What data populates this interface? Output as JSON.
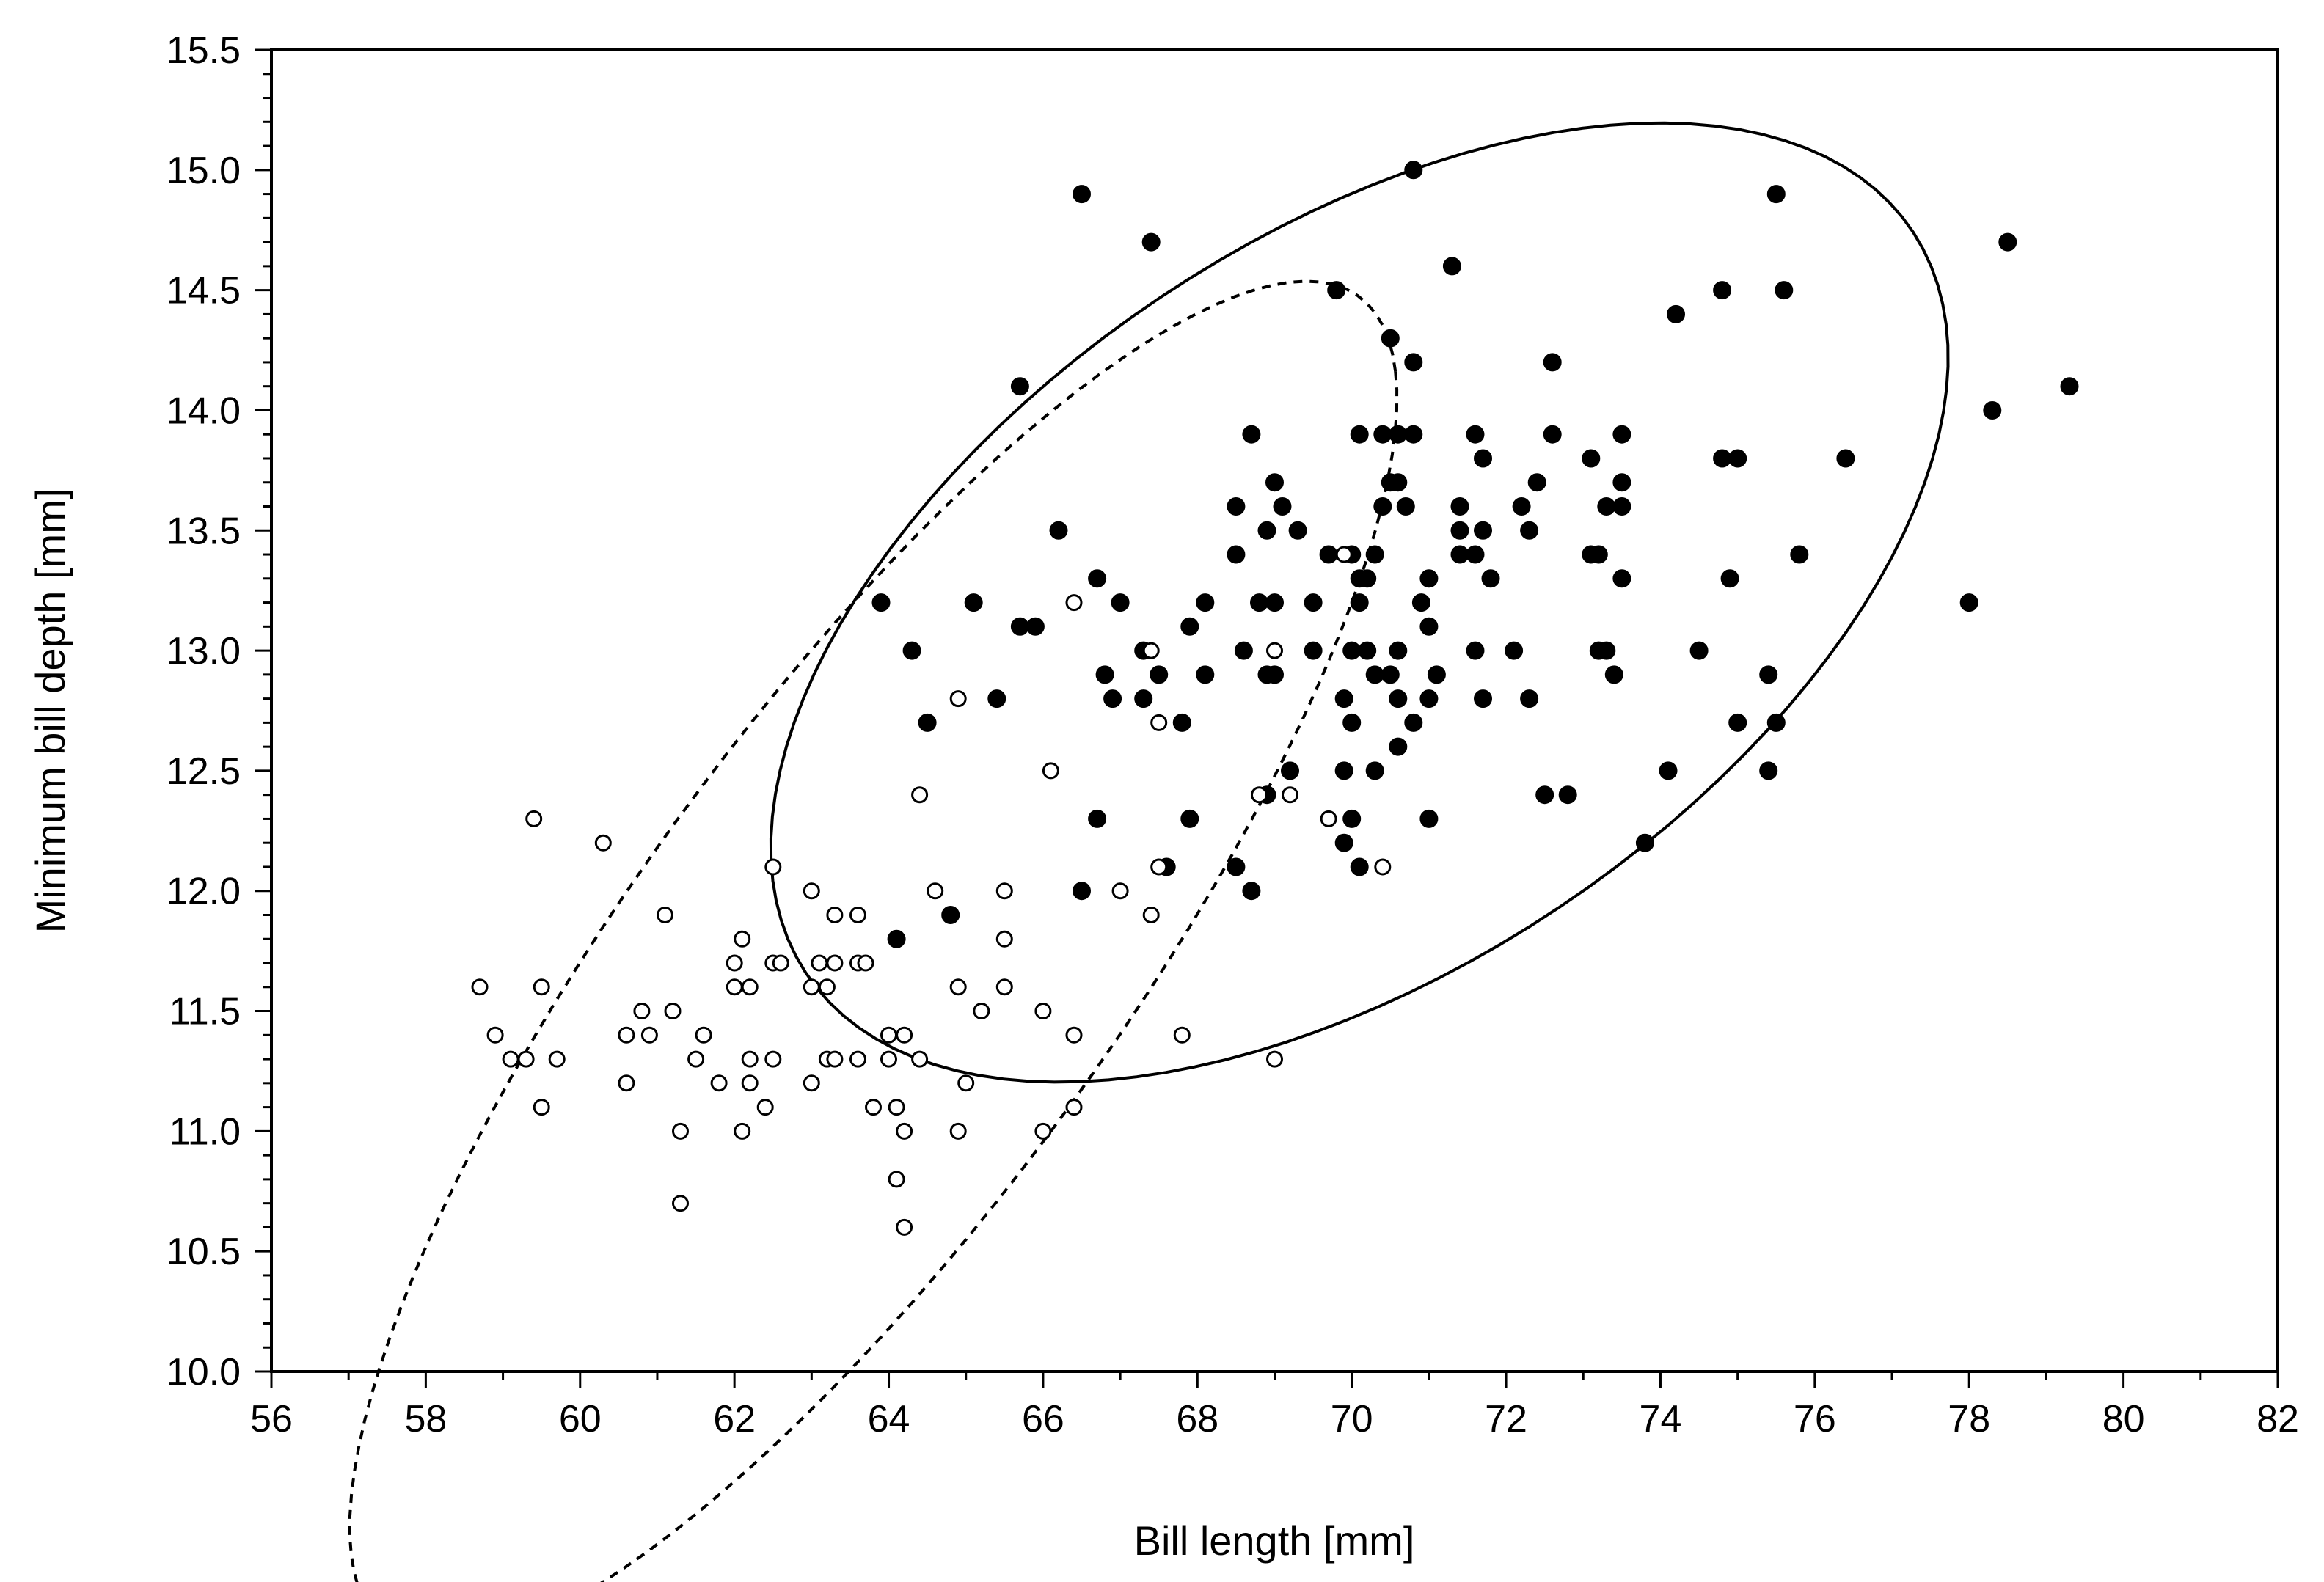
{
  "chart_data": {
    "type": "scatter",
    "title": "",
    "xlabel": "Bill length [mm]",
    "ylabel": "Minimum bill depth [mm]",
    "xlim": [
      56,
      82
    ],
    "ylim": [
      10.0,
      15.5
    ],
    "grid": false,
    "xticks": [
      "56",
      "58",
      "60",
      "62",
      "64",
      "66",
      "68",
      "70",
      "72",
      "74",
      "76",
      "78",
      "80",
      "82"
    ],
    "yticks": [
      "10.0",
      "10.5",
      "11.0",
      "11.5",
      "12.0",
      "12.5",
      "13.0",
      "13.5",
      "14.0",
      "14.5",
      "15.0",
      "15.5"
    ],
    "series": [
      {
        "name": "filled",
        "marker": "filled-circle",
        "ellipse_style": "solid",
        "ellipse": {
          "cx": 70.1,
          "cy": 13.2,
          "rx": 7.7,
          "ry": 1.7,
          "angle_deg": 8
        },
        "points": [
          [
            66.5,
            14.9
          ],
          [
            67.4,
            14.7
          ],
          [
            70.8,
            15.0
          ],
          [
            75.5,
            14.9
          ],
          [
            78.5,
            14.7
          ],
          [
            65.7,
            14.1
          ],
          [
            69.8,
            14.5
          ],
          [
            71.3,
            14.6
          ],
          [
            70.5,
            14.3
          ],
          [
            70.8,
            14.2
          ],
          [
            72.6,
            14.2
          ],
          [
            74.2,
            14.4
          ],
          [
            74.8,
            14.5
          ],
          [
            75.6,
            14.5
          ],
          [
            78.3,
            14.0
          ],
          [
            79.3,
            14.1
          ],
          [
            68.7,
            13.9
          ],
          [
            70.1,
            13.9
          ],
          [
            70.4,
            13.9
          ],
          [
            70.6,
            13.9
          ],
          [
            70.8,
            13.9
          ],
          [
            71.6,
            13.9
          ],
          [
            72.6,
            13.9
          ],
          [
            73.5,
            13.9
          ],
          [
            71.7,
            13.8
          ],
          [
            73.1,
            13.8
          ],
          [
            74.8,
            13.8
          ],
          [
            75.0,
            13.8
          ],
          [
            76.4,
            13.8
          ],
          [
            69.0,
            13.7
          ],
          [
            70.5,
            13.7
          ],
          [
            70.6,
            13.7
          ],
          [
            72.4,
            13.7
          ],
          [
            73.5,
            13.7
          ],
          [
            68.5,
            13.6
          ],
          [
            69.1,
            13.6
          ],
          [
            70.4,
            13.6
          ],
          [
            70.7,
            13.6
          ],
          [
            71.4,
            13.6
          ],
          [
            72.2,
            13.6
          ],
          [
            73.3,
            13.6
          ],
          [
            73.5,
            13.6
          ],
          [
            66.2,
            13.5
          ],
          [
            68.9,
            13.5
          ],
          [
            69.3,
            13.5
          ],
          [
            71.4,
            13.5
          ],
          [
            71.7,
            13.5
          ],
          [
            72.3,
            13.5
          ],
          [
            68.5,
            13.4
          ],
          [
            69.7,
            13.4
          ],
          [
            70.0,
            13.4
          ],
          [
            70.3,
            13.4
          ],
          [
            71.4,
            13.4
          ],
          [
            71.6,
            13.4
          ],
          [
            73.1,
            13.4
          ],
          [
            73.2,
            13.4
          ],
          [
            75.8,
            13.4
          ],
          [
            66.7,
            13.3
          ],
          [
            70.1,
            13.3
          ],
          [
            70.2,
            13.3
          ],
          [
            71.0,
            13.3
          ],
          [
            71.8,
            13.3
          ],
          [
            73.5,
            13.3
          ],
          [
            74.9,
            13.3
          ],
          [
            63.9,
            13.2
          ],
          [
            65.1,
            13.2
          ],
          [
            67.0,
            13.2
          ],
          [
            68.1,
            13.2
          ],
          [
            68.8,
            13.2
          ],
          [
            69.0,
            13.2
          ],
          [
            69.5,
            13.2
          ],
          [
            70.1,
            13.2
          ],
          [
            70.9,
            13.2
          ],
          [
            78.0,
            13.2
          ],
          [
            65.7,
            13.1
          ],
          [
            65.9,
            13.1
          ],
          [
            67.9,
            13.1
          ],
          [
            71.0,
            13.1
          ],
          [
            64.3,
            13.0
          ],
          [
            67.3,
            13.0
          ],
          [
            68.6,
            13.0
          ],
          [
            69.5,
            13.0
          ],
          [
            70.0,
            13.0
          ],
          [
            70.2,
            13.0
          ],
          [
            70.6,
            13.0
          ],
          [
            71.6,
            13.0
          ],
          [
            72.1,
            13.0
          ],
          [
            73.2,
            13.0
          ],
          [
            73.3,
            13.0
          ],
          [
            74.5,
            13.0
          ],
          [
            66.8,
            12.9
          ],
          [
            67.5,
            12.9
          ],
          [
            68.1,
            12.9
          ],
          [
            68.9,
            12.9
          ],
          [
            69.0,
            12.9
          ],
          [
            70.3,
            12.9
          ],
          [
            70.5,
            12.9
          ],
          [
            71.1,
            12.9
          ],
          [
            73.4,
            12.9
          ],
          [
            75.4,
            12.9
          ],
          [
            65.4,
            12.8
          ],
          [
            66.9,
            12.8
          ],
          [
            67.3,
            12.8
          ],
          [
            69.9,
            12.8
          ],
          [
            70.6,
            12.8
          ],
          [
            71.0,
            12.8
          ],
          [
            71.7,
            12.8
          ],
          [
            72.3,
            12.8
          ],
          [
            64.5,
            12.7
          ],
          [
            67.8,
            12.7
          ],
          [
            70.0,
            12.7
          ],
          [
            70.8,
            12.7
          ],
          [
            75.0,
            12.7
          ],
          [
            75.5,
            12.7
          ],
          [
            70.6,
            12.6
          ],
          [
            69.2,
            12.5
          ],
          [
            69.9,
            12.5
          ],
          [
            70.3,
            12.5
          ],
          [
            74.1,
            12.5
          ],
          [
            75.4,
            12.5
          ],
          [
            68.9,
            12.4
          ],
          [
            72.5,
            12.4
          ],
          [
            72.8,
            12.4
          ],
          [
            66.7,
            12.3
          ],
          [
            67.9,
            12.3
          ],
          [
            70.0,
            12.3
          ],
          [
            71.0,
            12.3
          ],
          [
            69.9,
            12.2
          ],
          [
            73.8,
            12.2
          ],
          [
            67.6,
            12.1
          ],
          [
            68.5,
            12.1
          ],
          [
            70.1,
            12.1
          ],
          [
            66.5,
            12.0
          ],
          [
            68.7,
            12.0
          ],
          [
            64.8,
            11.9
          ],
          [
            64.1,
            11.8
          ]
        ]
      },
      {
        "name": "open",
        "marker": "open-circle",
        "ellipse_style": "dashed",
        "ellipse": {
          "cx": 63.8,
          "cy": 11.7,
          "rx": 7.2,
          "ry": 1.5,
          "angle_deg": 20
        },
        "points": [
          [
            69.9,
            13.4
          ],
          [
            66.4,
            13.2
          ],
          [
            67.4,
            13.0
          ],
          [
            69.0,
            13.0
          ],
          [
            64.9,
            12.8
          ],
          [
            67.5,
            12.7
          ],
          [
            66.1,
            12.5
          ],
          [
            64.4,
            12.4
          ],
          [
            68.8,
            12.4
          ],
          [
            69.2,
            12.4
          ],
          [
            69.7,
            12.3
          ],
          [
            59.4,
            12.3
          ],
          [
            60.3,
            12.2
          ],
          [
            62.5,
            12.1
          ],
          [
            67.5,
            12.1
          ],
          [
            70.4,
            12.1
          ],
          [
            63.0,
            12.0
          ],
          [
            64.6,
            12.0
          ],
          [
            65.5,
            12.0
          ],
          [
            67.0,
            12.0
          ],
          [
            61.1,
            11.9
          ],
          [
            63.3,
            11.9
          ],
          [
            63.6,
            11.9
          ],
          [
            67.4,
            11.9
          ],
          [
            62.1,
            11.8
          ],
          [
            65.5,
            11.8
          ],
          [
            58.7,
            11.6
          ],
          [
            59.5,
            11.6
          ],
          [
            62.0,
            11.6
          ],
          [
            62.2,
            11.6
          ],
          [
            63.0,
            11.6
          ],
          [
            63.2,
            11.6
          ],
          [
            64.9,
            11.6
          ],
          [
            65.5,
            11.6
          ],
          [
            62.0,
            11.7
          ],
          [
            62.5,
            11.7
          ],
          [
            62.6,
            11.7
          ],
          [
            63.1,
            11.7
          ],
          [
            63.3,
            11.7
          ],
          [
            63.6,
            11.7
          ],
          [
            63.7,
            11.7
          ],
          [
            60.8,
            11.5
          ],
          [
            61.2,
            11.5
          ],
          [
            65.2,
            11.5
          ],
          [
            66.0,
            11.5
          ],
          [
            58.9,
            11.4
          ],
          [
            60.6,
            11.4
          ],
          [
            60.9,
            11.4
          ],
          [
            61.6,
            11.4
          ],
          [
            64.0,
            11.4
          ],
          [
            64.2,
            11.4
          ],
          [
            66.4,
            11.4
          ],
          [
            67.8,
            11.4
          ],
          [
            59.1,
            11.3
          ],
          [
            59.3,
            11.3
          ],
          [
            59.7,
            11.3
          ],
          [
            61.5,
            11.3
          ],
          [
            62.2,
            11.3
          ],
          [
            62.5,
            11.3
          ],
          [
            63.2,
            11.3
          ],
          [
            63.3,
            11.3
          ],
          [
            63.6,
            11.3
          ],
          [
            64.0,
            11.3
          ],
          [
            64.4,
            11.3
          ],
          [
            69.0,
            11.3
          ],
          [
            60.6,
            11.2
          ],
          [
            61.8,
            11.2
          ],
          [
            62.2,
            11.2
          ],
          [
            63.0,
            11.2
          ],
          [
            65.0,
            11.2
          ],
          [
            59.5,
            11.1
          ],
          [
            62.4,
            11.1
          ],
          [
            63.8,
            11.1
          ],
          [
            64.1,
            11.1
          ],
          [
            66.4,
            11.1
          ],
          [
            61.3,
            11.0
          ],
          [
            62.1,
            11.0
          ],
          [
            64.2,
            11.0
          ],
          [
            64.9,
            11.0
          ],
          [
            66.0,
            11.0
          ],
          [
            64.1,
            10.8
          ],
          [
            61.3,
            10.7
          ],
          [
            64.2,
            10.6
          ]
        ]
      }
    ]
  }
}
